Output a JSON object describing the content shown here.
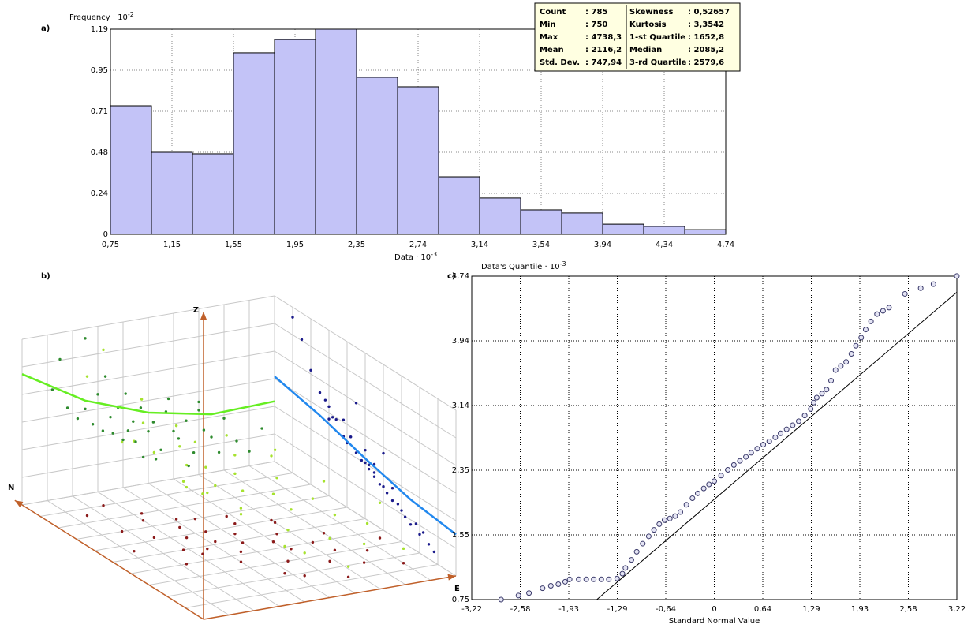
{
  "chart_data": [
    {
      "type": "histogram",
      "label": "a)",
      "ylabel": "Frequency · 10",
      "ylabel_exponent": "-2",
      "xlabel": "Data · 10",
      "xlabel_exponent": "-3",
      "bins": [
        0.75,
        1.0159,
        1.2818,
        1.5477,
        1.8135,
        2.0794,
        2.3453,
        2.6112,
        2.8771,
        3.143,
        3.4089,
        3.6748,
        3.9407,
        4.2065,
        4.4724,
        4.7383
      ],
      "values": [
        0.746,
        0.476,
        0.467,
        1.053,
        1.13,
        1.19,
        0.911,
        0.856,
        0.334,
        0.211,
        0.142,
        0.124,
        0.059,
        0.046,
        0.027
      ],
      "color": "#c3c3f7",
      "xlim": [
        0.75,
        4.7383
      ],
      "xticks": [
        {
          "value": 0.75,
          "label": "0,75"
        },
        {
          "value": 1.1488,
          "label": "1,15"
        },
        {
          "value": 1.5477,
          "label": "1,55"
        },
        {
          "value": 1.9465,
          "label": "1,95"
        },
        {
          "value": 2.3453,
          "label": "2,35"
        },
        {
          "value": 2.7442,
          "label": "2,74"
        },
        {
          "value": 3.143,
          "label": "3,14"
        },
        {
          "value": 3.5418,
          "label": "3,54"
        },
        {
          "value": 3.9407,
          "label": "3,94"
        },
        {
          "value": 4.3395,
          "label": "4,34"
        },
        {
          "value": 4.7383,
          "label": "4,74"
        }
      ],
      "ylim": [
        0,
        1.19
      ],
      "yticks": [
        0,
        {
          "value": 0.238,
          "label": "0,24"
        },
        {
          "value": 0.476,
          "label": "0,48"
        },
        {
          "value": 0.714,
          "label": "0,71"
        },
        {
          "value": 0.952,
          "label": "0,95"
        },
        {
          "value": 1.19,
          "label": "1,19"
        }
      ],
      "grid": true,
      "stats_table": [
        [
          "Count",
          ": 785",
          "Skewness",
          ": 0,52657"
        ],
        [
          "Min",
          ": 750",
          "Kurtosis",
          ": 3,3542"
        ],
        [
          "Max",
          ": 4738,3",
          "1-st Quartile",
          ": 1652,8"
        ],
        [
          "Mean",
          ": 2116,2",
          "Median",
          ": 2085,2"
        ],
        [
          "Std. Dev.",
          ": 747,94",
          "3-rd Quartile",
          ": 2579,6"
        ]
      ]
    },
    {
      "type": "scatter3d",
      "label": "b)",
      "axis_labels": {
        "n": "N",
        "e": "E",
        "z": "Z"
      },
      "zlim": [
        0.75,
        4.74
      ],
      "e": [
        0.12,
        0.18,
        0.22,
        0.25,
        0.28,
        0.3,
        0.32,
        0.35,
        0.38,
        0.4,
        0.42,
        0.44,
        0.45,
        0.47,
        0.5,
        0.52,
        0.55,
        0.57,
        0.6,
        0.62,
        0.65,
        0.68,
        0.7,
        0.72,
        0.75,
        0.78,
        0.8,
        0.85,
        0.9,
        0.95,
        0.15,
        0.33,
        0.48,
        0.58,
        0.66,
        0.25,
        0.41,
        0.53,
        0.7,
        0.36
      ],
      "n": [
        0.55,
        0.7,
        0.4,
        0.62,
        0.5,
        0.75,
        0.45,
        0.58,
        0.66,
        0.35,
        0.52,
        0.6,
        0.42,
        0.7,
        0.48,
        0.55,
        0.3,
        0.62,
        0.45,
        0.38,
        0.5,
        0.25,
        0.58,
        0.4,
        0.32,
        0.2,
        0.45,
        0.28,
        0.15,
        0.35,
        0.85,
        0.8,
        0.22,
        0.68,
        0.12,
        0.9,
        0.72,
        0.18,
        0.6,
        0.48
      ],
      "values": [
        3.4,
        2.9,
        2.6,
        2.8,
        2.4,
        3.1,
        2.2,
        2.5,
        2.7,
        1.9,
        2.1,
        2.3,
        1.8,
        2.6,
        2.0,
        2.2,
        1.5,
        2.4,
        1.9,
        1.7,
        2.1,
        1.3,
        2.5,
        1.8,
        1.6,
        1.2,
        2.0,
        1.4,
        1.1,
        1.6,
        4.1,
        3.5,
        1.4,
        2.7,
        1.0,
        4.5,
        3.0,
        1.3,
        2.3,
        2.1
      ],
      "colors": {
        "points": "#a6e22e",
        "floor": "#8b1a1a",
        "wall_n": "#2e8b2e",
        "wall_e": "#1a1a8b"
      },
      "trends": [
        {
          "wall": "n",
          "color": "#66ee22",
          "positions": [
            0,
            0.25,
            0.5,
            0.75,
            1
          ],
          "values": [
            3.9,
            3.0,
            2.45,
            2.15,
            2.2
          ]
        },
        {
          "wall": "e",
          "color": "#2288ee",
          "positions": [
            1,
            0.75,
            0.5,
            0.25,
            0
          ],
          "values": [
            2.8,
            2.55,
            2.2,
            1.9,
            1.75
          ]
        }
      ]
    },
    {
      "type": "qq",
      "label": "c)",
      "ylabel": "Data's Quantile · 10",
      "ylabel_exponent": "-3",
      "xlabel": "Standard Normal Value",
      "x": [
        -2.83,
        -2.6,
        -2.46,
        -2.28,
        -2.17,
        -2.07,
        -1.98,
        -1.92,
        -1.8,
        -1.7,
        -1.6,
        -1.5,
        -1.4,
        -1.29,
        -1.22,
        -1.18,
        -1.1,
        -1.03,
        -0.95,
        -0.87,
        -0.8,
        -0.73,
        -0.66,
        -0.59,
        -0.52,
        -0.45,
        -0.37,
        -0.29,
        -0.22,
        -0.14,
        -0.07,
        0,
        0.09,
        0.18,
        0.26,
        0.34,
        0.42,
        0.49,
        0.57,
        0.65,
        0.73,
        0.81,
        0.88,
        0.96,
        1.04,
        1.12,
        1.2,
        1.28,
        1.32,
        1.36,
        1.43,
        1.49,
        1.55,
        1.61,
        1.68,
        1.75,
        1.82,
        1.88,
        1.95,
        2.01,
        2.08,
        2.16,
        2.24,
        2.32,
        2.53,
        2.74,
        2.91,
        3.22
      ],
      "values": [
        0.75,
        0.8,
        0.83,
        0.89,
        0.92,
        0.94,
        0.97,
        1.0,
        1.0,
        1.0,
        1.0,
        1.0,
        1.0,
        1.01,
        1.07,
        1.14,
        1.24,
        1.34,
        1.44,
        1.53,
        1.61,
        1.68,
        1.73,
        1.75,
        1.78,
        1.83,
        1.92,
        2.0,
        2.06,
        2.12,
        2.17,
        2.21,
        2.28,
        2.35,
        2.41,
        2.46,
        2.51,
        2.56,
        2.61,
        2.66,
        2.7,
        2.75,
        2.8,
        2.85,
        2.9,
        2.95,
        3.02,
        3.1,
        3.18,
        3.24,
        3.29,
        3.34,
        3.45,
        3.58,
        3.63,
        3.68,
        3.78,
        3.88,
        3.98,
        4.08,
        4.18,
        4.27,
        4.31,
        4.35,
        4.52,
        4.59,
        4.64,
        4.74
      ],
      "color": "#3a3a6a",
      "reference_line": {
        "x": [
          -1.56,
          3.22
        ],
        "values": [
          0.75,
          4.54
        ]
      },
      "xlim": [
        -3.22,
        3.22
      ],
      "xticks": [
        {
          "value": -3.22,
          "label": "-3,22"
        },
        {
          "value": -2.576,
          "label": "-2,58"
        },
        {
          "value": -1.932,
          "label": "-1,93"
        },
        {
          "value": -1.288,
          "label": "-1,29"
        },
        {
          "value": -0.644,
          "label": "-0,64"
        },
        0,
        {
          "value": 0.644,
          "label": "0,64"
        },
        {
          "value": 1.288,
          "label": "1,29"
        },
        {
          "value": 1.932,
          "label": "1,93"
        },
        {
          "value": 2.576,
          "label": "2,58"
        },
        {
          "value": 3.22,
          "label": "3,22"
        }
      ],
      "ylim": [
        0.75,
        4.7383
      ],
      "yticks": [
        {
          "value": 0.75,
          "label": "0,75"
        },
        {
          "value": 1.5477,
          "label": "1,55"
        },
        {
          "value": 2.3453,
          "label": "2,35"
        },
        {
          "value": 3.143,
          "label": "3,14"
        },
        {
          "value": 3.9407,
          "label": "3,94"
        },
        {
          "value": 4.7383,
          "label": "4,74"
        }
      ],
      "grid": true
    }
  ]
}
